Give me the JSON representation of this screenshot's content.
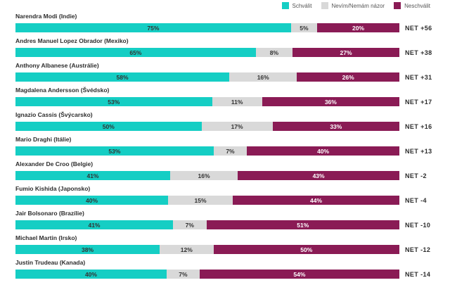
{
  "legend": {
    "items": [
      {
        "label": "Schválit",
        "color": "#15CEC4"
      },
      {
        "label": "Nevím/Nemám názor",
        "color": "#D9D9D9"
      },
      {
        "label": "Neschválit",
        "color": "#8A1B55"
      }
    ]
  },
  "chart_data": {
    "type": "bar",
    "stacked": true,
    "orientation": "horizontal",
    "legend_position": "top-right",
    "grid": false,
    "categories": [
      "Narendra Modi (Indie)",
      "Andres Manuel Lopez Obrador (Mexiko)",
      "Anthony Albanese (Austrálie)",
      "Magdalena Andersson (Švédsko)",
      "Ignazio Cassis (Švýcarsko)",
      "Mario Draghi (Itálie)",
      "Alexander De Croo (Belgie)",
      "Fumio Kishida (Japonsko)",
      "Jair Bolsonaro (Brazílie)",
      "Michael Martin (Irsko)",
      "Justin Trudeau (Kanada)"
    ],
    "series": [
      {
        "name": "Schválit",
        "color": "#15CEC4",
        "values": [
          75,
          65,
          58,
          53,
          50,
          53,
          41,
          40,
          41,
          38,
          40
        ]
      },
      {
        "name": "Nevím/Nemám názor",
        "color": "#D9D9D9",
        "values": [
          5,
          8,
          16,
          11,
          17,
          7,
          16,
          15,
          7,
          12,
          7
        ]
      },
      {
        "name": "Neschválit",
        "color": "#8A1B55",
        "values": [
          20,
          27,
          26,
          36,
          33,
          40,
          43,
          44,
          51,
          50,
          54
        ]
      }
    ],
    "net_values": [
      56,
      38,
      31,
      17,
      16,
      13,
      -2,
      -4,
      -10,
      -12,
      -14
    ],
    "value_suffix": "%"
  },
  "rows": [
    {
      "leader": "Narendra Modi (Indie)",
      "approve": "75%",
      "neutral": "5%",
      "disapprove": "20%",
      "approve_value": 75,
      "neutral_value": 5,
      "disapprove_value": 20,
      "net": "NET +56"
    },
    {
      "leader": "Andres Manuel Lopez Obrador (Mexiko)",
      "approve": "65%",
      "neutral": "8%",
      "disapprove": "27%",
      "approve_value": 65,
      "neutral_value": 8,
      "disapprove_value": 27,
      "net": "NET +38"
    },
    {
      "leader": "Anthony Albanese (Austrálie)",
      "approve": "58%",
      "neutral": "16%",
      "disapprove": "26%",
      "approve_value": 58,
      "neutral_value": 16,
      "disapprove_value": 26,
      "net": "NET +31"
    },
    {
      "leader": "Magdalena Andersson (Švédsko)",
      "approve": "53%",
      "neutral": "11%",
      "disapprove": "36%",
      "approve_value": 53,
      "neutral_value": 11,
      "disapprove_value": 36,
      "net": "NET +17"
    },
    {
      "leader": "Ignazio Cassis (Švýcarsko)",
      "approve": "50%",
      "neutral": "17%",
      "disapprove": "33%",
      "approve_value": 50,
      "neutral_value": 17,
      "disapprove_value": 33,
      "net": "NET +16"
    },
    {
      "leader": "Mario Draghi (Itálie)",
      "approve": "53%",
      "neutral": "7%",
      "disapprove": "40%",
      "approve_value": 53,
      "neutral_value": 7,
      "disapprove_value": 40,
      "net": "NET +13"
    },
    {
      "leader": "Alexander De Croo (Belgie)",
      "approve": "41%",
      "neutral": "16%",
      "disapprove": "43%",
      "approve_value": 41,
      "neutral_value": 16,
      "disapprove_value": 43,
      "net": "NET -2"
    },
    {
      "leader": "Fumio Kishida (Japonsko)",
      "approve": "40%",
      "neutral": "15%",
      "disapprove": "44%",
      "approve_value": 40,
      "neutral_value": 15,
      "disapprove_value": 44,
      "net": "NET -4"
    },
    {
      "leader": "Jair Bolsonaro (Brazílie)",
      "approve": "41%",
      "neutral": "7%",
      "disapprove": "51%",
      "approve_value": 41,
      "neutral_value": 7,
      "disapprove_value": 51,
      "net": "NET -10"
    },
    {
      "leader": "Michael Martin (Irsko)",
      "approve": "38%",
      "neutral": "12%",
      "disapprove": "50%",
      "approve_value": 38,
      "neutral_value": 12,
      "disapprove_value": 50,
      "net": "NET -12"
    },
    {
      "leader": "Justin Trudeau (Kanada)",
      "approve": "40%",
      "neutral": "7%",
      "disapprove": "54%",
      "approve_value": 40,
      "neutral_value": 7,
      "disapprove_value": 54,
      "net": "NET -14"
    }
  ]
}
